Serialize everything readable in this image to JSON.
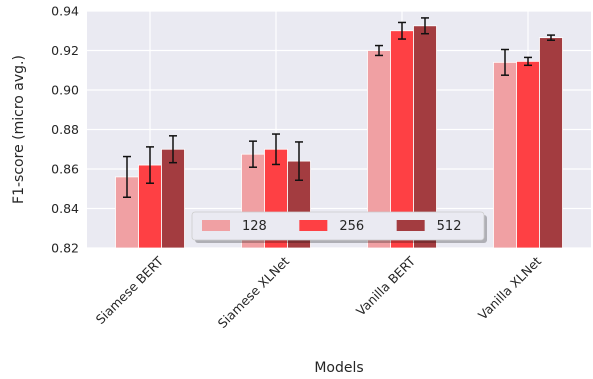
{
  "chart_data": {
    "type": "bar",
    "title": "",
    "xlabel": "Models",
    "ylabel": "F1-score (micro avg.)",
    "ylim": [
      0.82,
      0.94
    ],
    "yticks": [
      "0.82",
      "0.84",
      "0.86",
      "0.88",
      "0.90",
      "0.92",
      "0.94"
    ],
    "categories": [
      "Siamese BERT",
      "Siamese XLNet",
      "Vanilla BERT",
      "Vanilla XLNet"
    ],
    "series": [
      {
        "name": "128",
        "color": "#f0a0a3",
        "values": [
          0.856,
          0.8675,
          0.92,
          0.914
        ],
        "errors": [
          0.0103,
          0.0066,
          0.0025,
          0.0065
        ]
      },
      {
        "name": "256",
        "color": "#fe4044",
        "values": [
          0.862,
          0.87,
          0.93,
          0.9145
        ],
        "errors": [
          0.0092,
          0.0077,
          0.0042,
          0.002
        ]
      },
      {
        "name": "512",
        "color": "#a33c40",
        "values": [
          0.87,
          0.864,
          0.9325,
          0.9265
        ],
        "errors": [
          0.0068,
          0.0097,
          0.004,
          0.0013
        ]
      }
    ],
    "grid": true,
    "legend_position": "lower-center"
  }
}
